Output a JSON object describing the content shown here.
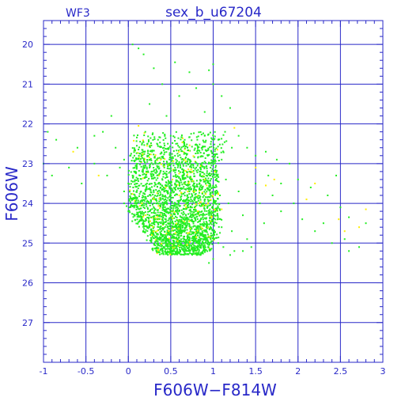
{
  "chart_data": {
    "type": "scatter",
    "title_left": "WF3",
    "title": "sex_b_u67204",
    "xlabel": "F606W−F814W",
    "ylabel": "F606W",
    "xlim": [
      -1,
      3
    ],
    "ylim": [
      28,
      19.4
    ],
    "y_inverted": true,
    "grid": true,
    "x_ticks": [
      "-1",
      "-0.5",
      "0",
      "0.5",
      "1",
      "1.5",
      "2",
      "2.5",
      "3"
    ],
    "y_ticks": [
      "20",
      "21",
      "22",
      "23",
      "24",
      "25",
      "26",
      "27"
    ],
    "colors": {
      "frame": "#2828c8",
      "grid": "#2828c8",
      "series_main": "#22ee22",
      "series_highlight": "#ffee00"
    },
    "series": [
      {
        "color": "#22ee22",
        "points": [
          [
            0.05,
            20.0
          ],
          [
            0.12,
            20.1
          ],
          [
            0.18,
            20.25
          ],
          [
            0.3,
            20.6
          ],
          [
            0.55,
            20.45
          ],
          [
            0.72,
            20.7
          ],
          [
            1.0,
            20.5
          ],
          [
            0.95,
            20.65
          ],
          [
            1.0,
            21.0
          ],
          [
            0.4,
            21.0
          ],
          [
            0.6,
            21.3
          ],
          [
            0.8,
            21.1
          ],
          [
            0.25,
            21.5
          ],
          [
            -0.2,
            21.8
          ],
          [
            1.1,
            21.3
          ],
          [
            1.2,
            21.6
          ],
          [
            0.9,
            21.7
          ],
          [
            0.45,
            21.8
          ],
          [
            -0.95,
            22.2
          ],
          [
            -0.85,
            22.4
          ],
          [
            -0.6,
            22.6
          ],
          [
            -0.4,
            22.3
          ],
          [
            -0.3,
            22.2
          ],
          [
            -0.15,
            22.6
          ],
          [
            -0.05,
            22.9
          ],
          [
            0.02,
            22.8
          ],
          [
            0.1,
            22.55
          ],
          [
            0.2,
            22.2
          ],
          [
            0.28,
            22.7
          ],
          [
            0.35,
            22.4
          ],
          [
            0.42,
            22.6
          ],
          [
            0.5,
            22.3
          ],
          [
            0.58,
            22.75
          ],
          [
            0.66,
            22.5
          ],
          [
            0.74,
            22.25
          ],
          [
            0.82,
            22.6
          ],
          [
            0.9,
            22.3
          ],
          [
            0.98,
            22.7
          ],
          [
            1.06,
            22.4
          ],
          [
            1.14,
            22.2
          ],
          [
            1.22,
            22.6
          ],
          [
            1.3,
            22.3
          ],
          [
            1.4,
            22.6
          ],
          [
            1.5,
            22.8
          ],
          [
            1.62,
            22.7
          ],
          [
            1.75,
            22.9
          ],
          [
            1.9,
            23.0
          ],
          [
            1.65,
            23.3
          ],
          [
            1.8,
            23.5
          ],
          [
            2.0,
            23.4
          ],
          [
            2.15,
            23.6
          ],
          [
            2.35,
            23.8
          ],
          [
            2.5,
            24.1
          ],
          [
            2.6,
            24.35
          ],
          [
            2.55,
            24.9
          ],
          [
            2.72,
            25.1
          ],
          [
            2.8,
            24.5
          ],
          [
            2.45,
            23.3
          ],
          [
            -1.0,
            23.0
          ],
          [
            -0.9,
            23.3
          ],
          [
            -0.7,
            23.1
          ],
          [
            -0.55,
            23.5
          ],
          [
            -0.4,
            23.0
          ],
          [
            -0.25,
            23.3
          ],
          [
            -0.1,
            23.1
          ],
          [
            -0.05,
            23.7
          ],
          [
            0.0,
            23.5
          ],
          [
            0.05,
            23.9
          ],
          [
            0.08,
            23.2
          ],
          [
            0.1,
            24.0
          ],
          [
            0.15,
            23.7
          ],
          [
            0.18,
            24.1
          ],
          [
            0.22,
            23.5
          ],
          [
            0.25,
            24.2
          ],
          [
            0.3,
            23.9
          ],
          [
            0.33,
            24.3
          ],
          [
            0.38,
            23.6
          ],
          [
            0.4,
            24.4
          ],
          [
            0.44,
            24.0
          ],
          [
            0.47,
            24.5
          ],
          [
            0.5,
            23.8
          ],
          [
            0.53,
            24.6
          ],
          [
            0.56,
            24.2
          ],
          [
            0.59,
            24.7
          ],
          [
            0.62,
            23.9
          ],
          [
            0.64,
            24.5
          ],
          [
            0.66,
            24.9
          ],
          [
            0.68,
            24.3
          ],
          [
            0.7,
            24.8
          ],
          [
            0.72,
            23.7
          ],
          [
            0.74,
            24.6
          ],
          [
            0.76,
            25.0
          ],
          [
            0.78,
            24.1
          ],
          [
            0.8,
            24.7
          ],
          [
            0.82,
            25.1
          ],
          [
            0.84,
            23.5
          ],
          [
            0.86,
            24.4
          ],
          [
            0.88,
            24.9
          ],
          [
            0.9,
            23.9
          ],
          [
            0.92,
            24.6
          ],
          [
            0.94,
            25.1
          ],
          [
            0.96,
            23.3
          ],
          [
            0.98,
            24.2
          ],
          [
            1.0,
            24.8
          ],
          [
            1.02,
            23.6
          ],
          [
            1.04,
            24.5
          ],
          [
            1.06,
            25.0
          ],
          [
            1.08,
            23.8
          ],
          [
            1.1,
            24.6
          ],
          [
            1.12,
            25.1
          ],
          [
            1.15,
            23.4
          ],
          [
            1.18,
            24.0
          ],
          [
            1.22,
            24.7
          ],
          [
            1.25,
            25.2
          ],
          [
            1.3,
            23.7
          ],
          [
            1.35,
            24.3
          ],
          [
            1.4,
            24.9
          ],
          [
            1.45,
            25.1
          ],
          [
            1.5,
            23.5
          ],
          [
            1.55,
            24.0
          ],
          [
            1.6,
            24.5
          ],
          [
            1.7,
            23.8
          ],
          [
            1.8,
            24.2
          ],
          [
            1.95,
            24.0
          ],
          [
            2.05,
            24.4
          ],
          [
            2.2,
            24.7
          ],
          [
            2.3,
            24.5
          ],
          [
            2.4,
            25.0
          ],
          [
            2.6,
            25.2
          ],
          [
            1.0,
            25.4
          ],
          [
            0.85,
            25.3
          ],
          [
            0.7,
            25.2
          ],
          [
            0.55,
            25.0
          ],
          [
            0.4,
            24.8
          ],
          [
            0.25,
            24.6
          ],
          [
            0.15,
            24.4
          ],
          [
            0.0,
            24.2
          ],
          [
            -0.05,
            24.0
          ],
          [
            1.2,
            25.3
          ],
          [
            1.35,
            25.2
          ],
          [
            0.95,
            25.5
          ],
          [
            0.6,
            23.0
          ],
          [
            0.7,
            22.9
          ],
          [
            0.8,
            23.1
          ],
          [
            0.9,
            22.95
          ],
          [
            1.0,
            23.0
          ],
          [
            1.1,
            22.9
          ],
          [
            0.65,
            23.3
          ],
          [
            0.75,
            23.4
          ],
          [
            0.85,
            23.2
          ],
          [
            0.95,
            23.5
          ],
          [
            1.05,
            23.3
          ],
          [
            0.55,
            23.5
          ],
          [
            0.45,
            23.2
          ],
          [
            0.35,
            23.0
          ],
          [
            0.25,
            23.1
          ],
          [
            0.15,
            22.95
          ],
          [
            0.05,
            23.3
          ]
        ]
      },
      {
        "color": "#ffee00",
        "points": [
          [
            -0.65,
            22.7
          ],
          [
            0.12,
            22.05
          ],
          [
            0.22,
            22.55
          ],
          [
            0.38,
            22.9
          ],
          [
            0.52,
            23.4
          ],
          [
            0.6,
            23.8
          ],
          [
            0.68,
            24.1
          ],
          [
            0.72,
            24.45
          ],
          [
            0.78,
            23.7
          ],
          [
            0.82,
            24.2
          ],
          [
            0.86,
            24.6
          ],
          [
            0.9,
            23.4
          ],
          [
            0.94,
            24.0
          ],
          [
            0.98,
            24.35
          ],
          [
            1.02,
            23.2
          ],
          [
            1.06,
            23.75
          ],
          [
            1.1,
            24.15
          ],
          [
            0.66,
            22.9
          ],
          [
            0.74,
            23.15
          ],
          [
            0.5,
            24.3
          ],
          [
            0.44,
            23.6
          ],
          [
            0.3,
            23.9
          ],
          [
            1.25,
            22.1
          ],
          [
            1.5,
            23.1
          ],
          [
            1.72,
            23.4
          ],
          [
            1.62,
            23.55
          ],
          [
            2.2,
            23.5
          ],
          [
            2.1,
            23.9
          ],
          [
            2.48,
            24.4
          ],
          [
            2.55,
            24.7
          ],
          [
            2.72,
            24.6
          ],
          [
            2.8,
            24.15
          ],
          [
            0.58,
            24.95
          ],
          [
            0.7,
            24.75
          ],
          [
            0.8,
            24.85
          ],
          [
            1.05,
            22.65
          ],
          [
            0.16,
            24.0
          ],
          [
            -0.35,
            23.3
          ]
        ]
      }
    ]
  }
}
